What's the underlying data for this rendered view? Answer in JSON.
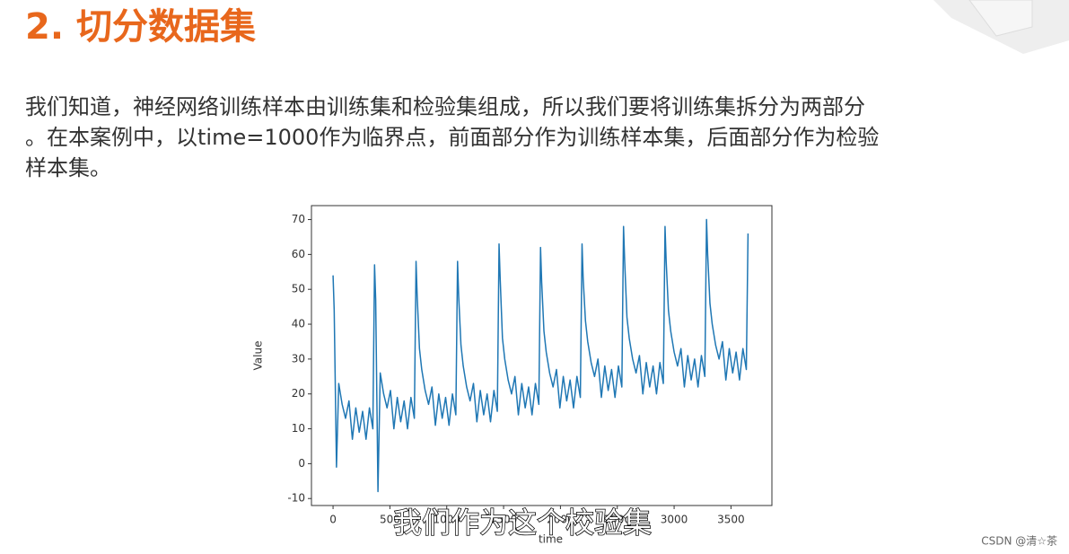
{
  "slide": {
    "title": "2. 切分数据集",
    "paragraph": [
      "我们知道，神经网络训练样本由训练集和检验集组成，所以我们要将训练集拆分为两部分",
      "。在本案例中，以time=1000作为临界点，前面部分作为训练样本集，后面部分作为检验",
      "样本集。"
    ],
    "caption": "我们作为这个校验集",
    "watermark": "CSDN @清☆茶"
  },
  "chart_data": {
    "type": "line",
    "xlabel": "time",
    "ylabel": "Value",
    "color": "#1f77b4",
    "xlim": [
      -190,
      3860
    ],
    "ylim": [
      -12,
      74
    ],
    "xticks": [
      0,
      500,
      1000,
      1500,
      2000,
      2500,
      3000,
      3500
    ],
    "yticks": [
      -10,
      0,
      10,
      20,
      30,
      40,
      50,
      60,
      70
    ],
    "x": [
      0,
      10,
      30,
      50,
      80,
      110,
      140,
      170,
      200,
      230,
      260,
      290,
      320,
      350,
      365,
      375,
      395,
      415,
      445,
      475,
      505,
      535,
      565,
      595,
      625,
      655,
      685,
      715,
      730,
      740,
      760,
      780,
      810,
      840,
      870,
      900,
      930,
      960,
      990,
      1020,
      1050,
      1080,
      1095,
      1105,
      1125,
      1145,
      1175,
      1205,
      1235,
      1265,
      1295,
      1325,
      1355,
      1385,
      1415,
      1445,
      1460,
      1470,
      1490,
      1510,
      1540,
      1570,
      1600,
      1630,
      1660,
      1690,
      1720,
      1750,
      1780,
      1810,
      1825,
      1835,
      1855,
      1875,
      1905,
      1935,
      1965,
      1995,
      2025,
      2055,
      2085,
      2115,
      2145,
      2175,
      2190,
      2200,
      2220,
      2240,
      2270,
      2300,
      2330,
      2360,
      2390,
      2420,
      2450,
      2480,
      2510,
      2540,
      2555,
      2565,
      2585,
      2605,
      2635,
      2665,
      2695,
      2725,
      2755,
      2785,
      2815,
      2845,
      2875,
      2905,
      2920,
      2930,
      2950,
      2970,
      3000,
      3030,
      3060,
      3090,
      3120,
      3150,
      3180,
      3210,
      3240,
      3270,
      3285,
      3295,
      3315,
      3335,
      3365,
      3395,
      3425,
      3455,
      3485,
      3515,
      3545,
      3575,
      3605,
      3635,
      3650
    ],
    "values": [
      54,
      44,
      -1,
      23,
      17,
      13,
      18,
      7,
      16,
      9,
      15,
      7,
      16,
      10,
      57,
      47,
      -8,
      26,
      20,
      16,
      21,
      10,
      19,
      12,
      18,
      10,
      19,
      13,
      58,
      48,
      33,
      27,
      21,
      17,
      22,
      11,
      20,
      13,
      19,
      11,
      20,
      14,
      58,
      48,
      34,
      28,
      22,
      18,
      23,
      12,
      21,
      14,
      20,
      12,
      21,
      15,
      63,
      53,
      36,
      30,
      24,
      20,
      25,
      14,
      23,
      16,
      22,
      14,
      23,
      17,
      62,
      52,
      38,
      32,
      26,
      22,
      27,
      16,
      25,
      18,
      24,
      16,
      25,
      19,
      63,
      53,
      41,
      35,
      29,
      25,
      30,
      19,
      28,
      21,
      27,
      19,
      28,
      22,
      68,
      58,
      42,
      36,
      30,
      26,
      31,
      20,
      29,
      22,
      28,
      20,
      29,
      23,
      68,
      58,
      44,
      38,
      32,
      28,
      33,
      22,
      31,
      24,
      30,
      22,
      31,
      25,
      70,
      60,
      46,
      40,
      34,
      30,
      35,
      24,
      33,
      26,
      32,
      24,
      33,
      27,
      66
    ]
  }
}
